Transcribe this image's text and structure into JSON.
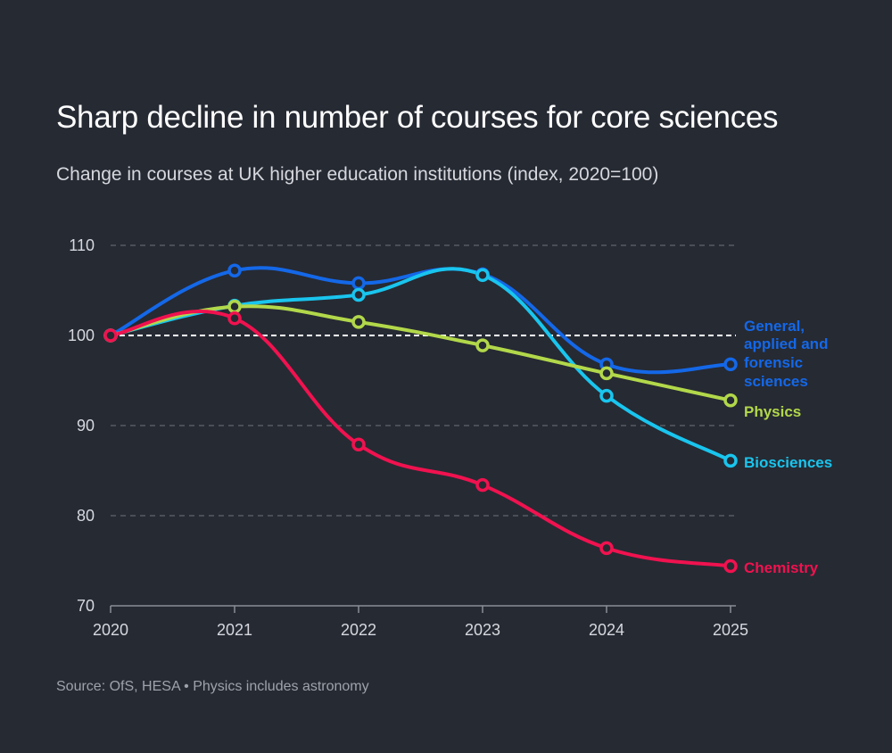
{
  "title": "Sharp decline in number of courses for core sciences",
  "subtitle": "Change in courses at UK higher education institutions (index, 2020=100)",
  "source": "Source: OfS, HESA • Physics includes astronomy",
  "chart_data": {
    "type": "line",
    "x": [
      2020,
      2021,
      2022,
      2023,
      2024,
      2025
    ],
    "xticks": [
      "2020",
      "2021",
      "2022",
      "2023",
      "2024",
      "2025"
    ],
    "yticks": [
      "70",
      "80",
      "90",
      "100",
      "110"
    ],
    "ylim": [
      70,
      110
    ],
    "grid": "dashed-horizontal",
    "reference_line": 100,
    "series": [
      {
        "name": [
          "General,",
          "applied and",
          "forensic",
          "sciences"
        ],
        "color": "#1468e8",
        "values": [
          100,
          107.2,
          105.8,
          106.8,
          96.8,
          96.8
        ]
      },
      {
        "name": [
          "Biosciences"
        ],
        "color": "#19c5ee",
        "values": [
          100,
          103.3,
          104.5,
          106.7,
          93.3,
          86.1
        ]
      },
      {
        "name": [
          "Physics"
        ],
        "color": "#b2d84a",
        "values": [
          100,
          103.2,
          101.5,
          98.9,
          95.8,
          92.8
        ]
      },
      {
        "name": [
          "Chemistry"
        ],
        "color": "#f0124f",
        "values": [
          100,
          101.9,
          87.9,
          83.4,
          76.4,
          74.4
        ]
      }
    ]
  }
}
